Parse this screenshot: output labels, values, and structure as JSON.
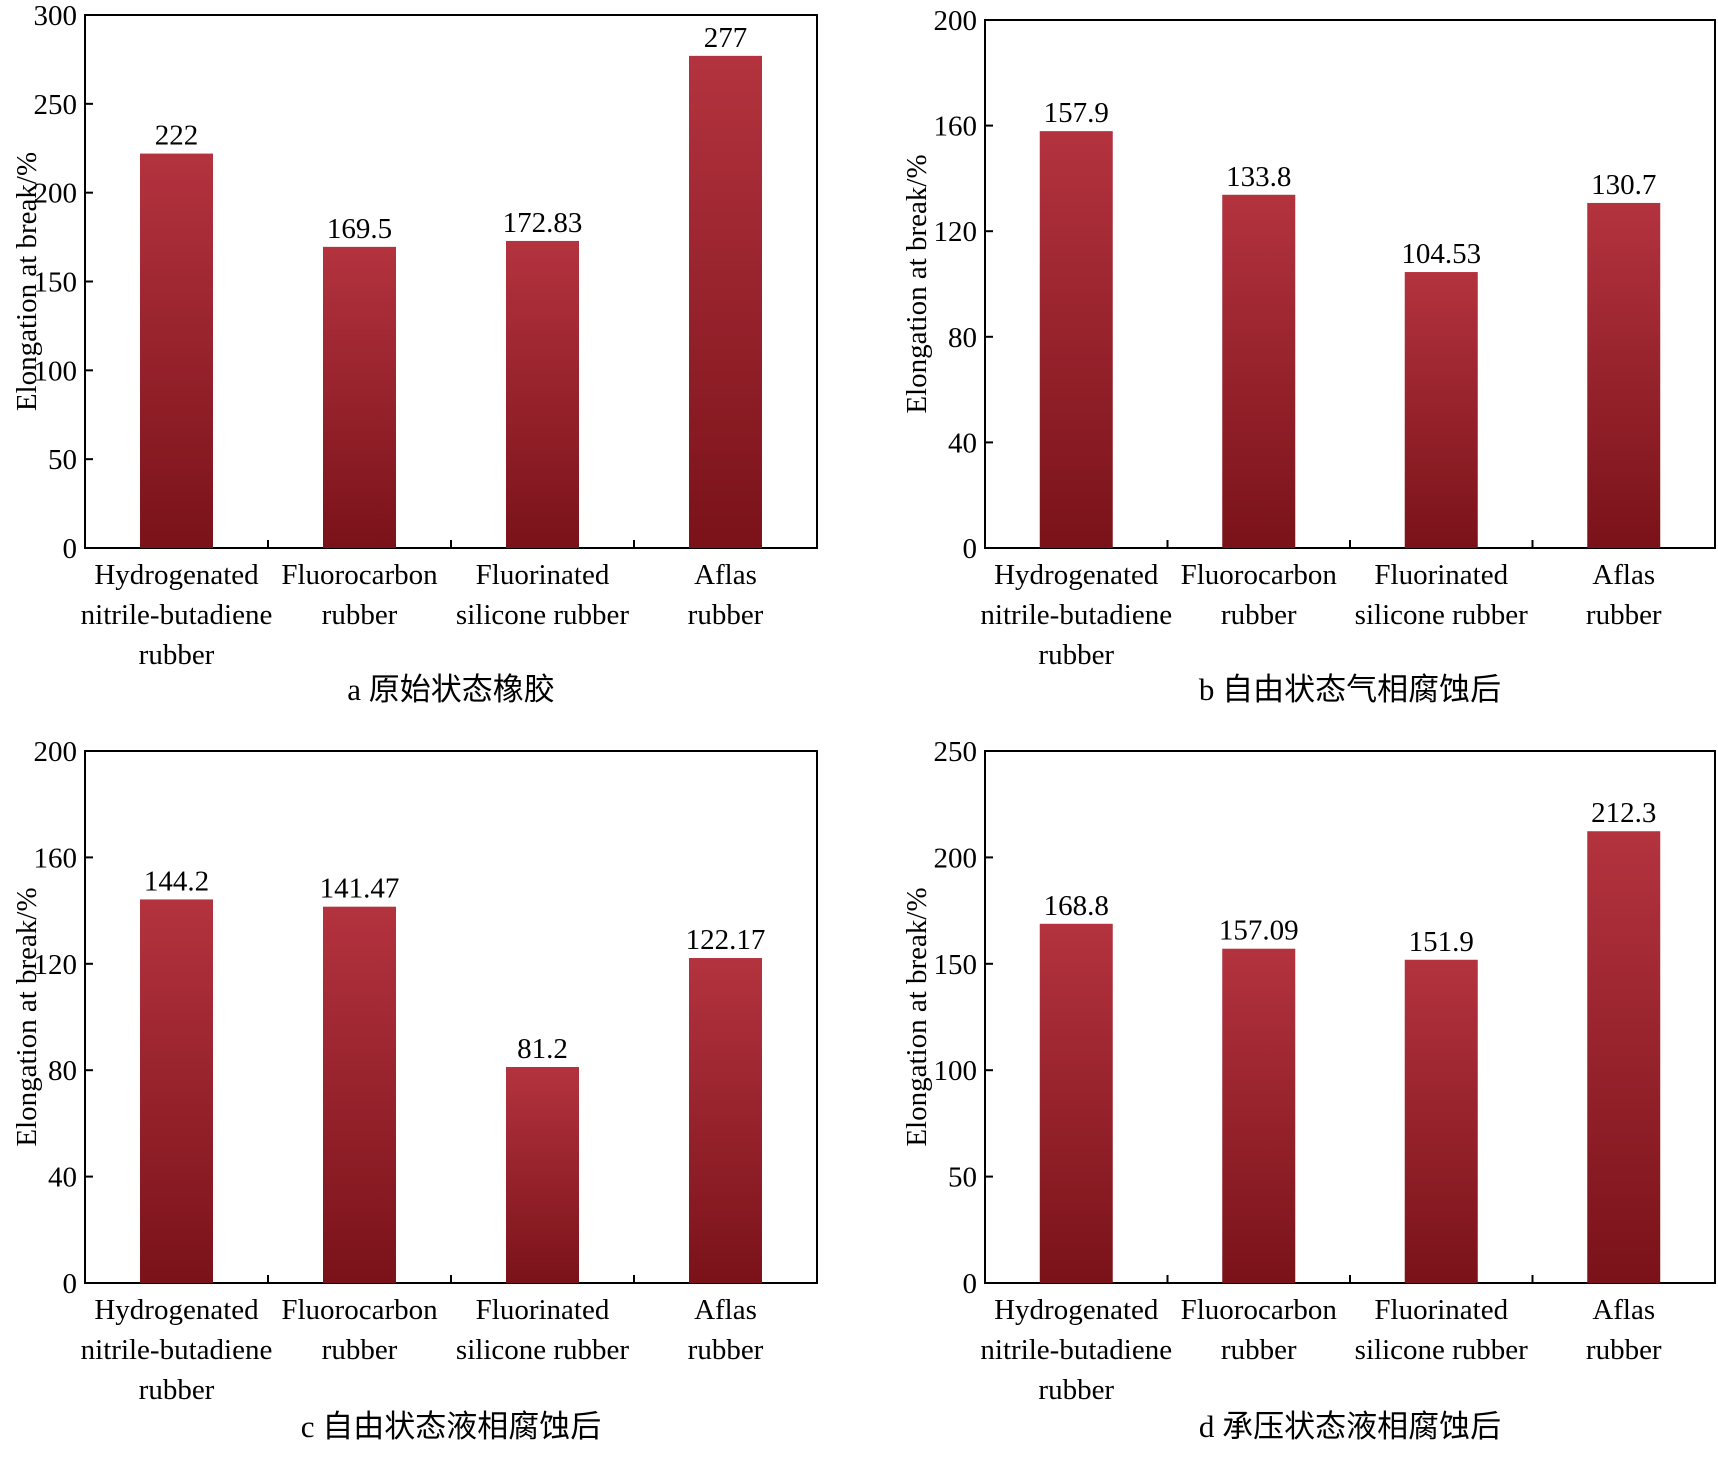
{
  "colors": {
    "bar_top": "#b3333f",
    "bar_bottom": "#7a1219",
    "axis": "#000000"
  },
  "chart_data": [
    {
      "id": "a",
      "type": "bar",
      "caption_letter": "a",
      "caption_text": "原始状态橡胶",
      "ylabel": "Elongation at break/%",
      "ylim": [
        0,
        300
      ],
      "yticks": [
        0,
        50,
        100,
        150,
        200,
        250,
        300
      ],
      "categories": [
        [
          "Hydrogenated",
          "nitrile-butadiene",
          "rubber"
        ],
        [
          "Fluorocarbon",
          "rubber"
        ],
        [
          "Fluorinated",
          "silicone rubber"
        ],
        [
          "Aflas",
          "rubber"
        ]
      ],
      "values": [
        222,
        169.5,
        172.83,
        277
      ],
      "value_labels": [
        "222",
        "169.5",
        "172.83",
        "277"
      ]
    },
    {
      "id": "b",
      "type": "bar",
      "caption_letter": "b",
      "caption_text": "自由状态气相腐蚀后",
      "ylabel": "Elongation at break/%",
      "ylim": [
        0,
        200
      ],
      "yticks": [
        0,
        40,
        80,
        120,
        160,
        200
      ],
      "categories": [
        [
          "Hydrogenated",
          "nitrile-butadiene",
          "rubber"
        ],
        [
          "Fluorocarbon",
          "rubber"
        ],
        [
          "Fluorinated",
          "silicone rubber"
        ],
        [
          "Aflas",
          "rubber"
        ]
      ],
      "values": [
        157.9,
        133.8,
        104.53,
        130.7
      ],
      "value_labels": [
        "157.9",
        "133.8",
        "104.53",
        "130.7"
      ]
    },
    {
      "id": "c",
      "type": "bar",
      "caption_letter": "c",
      "caption_text": "自由状态液相腐蚀后",
      "ylabel": "Elongation at break/%",
      "ylim": [
        0,
        200
      ],
      "yticks": [
        0,
        40,
        80,
        120,
        160,
        200
      ],
      "categories": [
        [
          "Hydrogenated",
          "nitrile-butadiene",
          "rubber"
        ],
        [
          "Fluorocarbon",
          "rubber"
        ],
        [
          "Fluorinated",
          "silicone rubber"
        ],
        [
          "Aflas",
          "rubber"
        ]
      ],
      "values": [
        144.2,
        141.47,
        81.2,
        122.17
      ],
      "value_labels": [
        "144.2",
        "141.47",
        "81.2",
        "122.17"
      ]
    },
    {
      "id": "d",
      "type": "bar",
      "caption_letter": "d",
      "caption_text": "承压状态液相腐蚀后",
      "ylabel": "Elongation at break/%",
      "ylim": [
        0,
        250
      ],
      "yticks": [
        0,
        50,
        100,
        150,
        200,
        250
      ],
      "categories": [
        [
          "Hydrogenated",
          "nitrile-butadiene",
          "rubber"
        ],
        [
          "Fluorocarbon",
          "rubber"
        ],
        [
          "Fluorinated",
          "silicone rubber"
        ],
        [
          "Aflas",
          "rubber"
        ]
      ],
      "values": [
        168.8,
        157.09,
        151.9,
        212.3
      ],
      "value_labels": [
        "168.8",
        "157.09",
        "151.9",
        "212.3"
      ]
    }
  ]
}
